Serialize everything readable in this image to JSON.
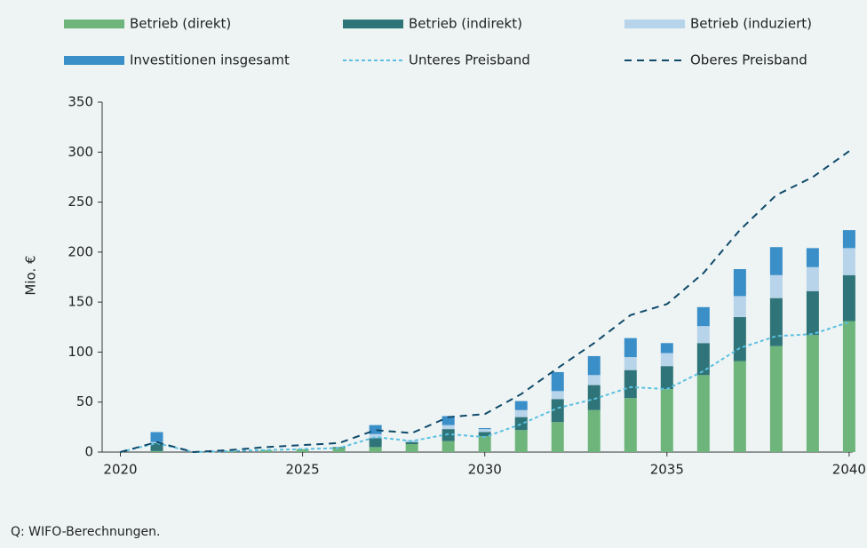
{
  "chart_data": {
    "type": "bar",
    "y_axis_label": "Mio. €",
    "source": "Q: WIFO-Berechnungen.",
    "x": [
      2020,
      2021,
      2022,
      2023,
      2024,
      2025,
      2026,
      2027,
      2028,
      2029,
      2030,
      2031,
      2032,
      2033,
      2034,
      2035,
      2036,
      2037,
      2038,
      2039,
      2040
    ],
    "xlim": [
      2019.5,
      2040.1
    ],
    "xticks": [
      2020,
      2025,
      2030,
      2035,
      2040
    ],
    "ylim": [
      0,
      350
    ],
    "yticks": [
      0,
      50,
      100,
      150,
      200,
      250,
      300,
      350
    ],
    "series": [
      {
        "name": "Betrieb (direkt)",
        "color": "#6db57a",
        "style": "bar",
        "values": [
          0,
          1,
          0,
          1,
          2,
          3,
          4,
          5,
          8,
          11,
          16,
          22,
          30,
          42,
          54,
          63,
          77,
          91,
          106,
          117,
          131
        ]
      },
      {
        "name": "Betrieb (indirekt)",
        "color": "#2f7478",
        "style": "bar",
        "values": [
          0,
          8,
          0,
          0,
          0,
          0,
          1,
          9,
          2,
          12,
          4,
          13,
          23,
          25,
          28,
          23,
          32,
          44,
          48,
          44,
          46
        ]
      },
      {
        "name": "Betrieb (induziert)",
        "color": "#b8d4ea",
        "style": "bar",
        "values": [
          0,
          1,
          0,
          0,
          0,
          0,
          0,
          4,
          2,
          4,
          3,
          7,
          8,
          10,
          13,
          13,
          17,
          21,
          23,
          24,
          27
        ]
      },
      {
        "name": "Investitionen insgesamt",
        "color": "#3a8fc9",
        "style": "bar",
        "values": [
          0,
          10,
          0,
          0,
          0,
          0,
          0,
          9,
          0,
          9,
          1,
          9,
          19,
          19,
          19,
          10,
          19,
          27,
          28,
          19,
          18
        ]
      },
      {
        "name": "Unteres Preisband",
        "color": "#5bc0e0",
        "style": "short-dash",
        "values": [
          0,
          9,
          0,
          1,
          2,
          3,
          4,
          15,
          11,
          18,
          15,
          28,
          44,
          53,
          65,
          63,
          81,
          104,
          116,
          118,
          130
        ]
      },
      {
        "name": "Oberes Preisband",
        "color": "#0f4a6a",
        "style": "long-dash",
        "values": [
          0,
          10,
          0,
          2,
          5,
          7,
          9,
          22,
          19,
          35,
          38,
          58,
          84,
          109,
          137,
          148,
          179,
          222,
          257,
          275,
          301
        ]
      }
    ]
  }
}
